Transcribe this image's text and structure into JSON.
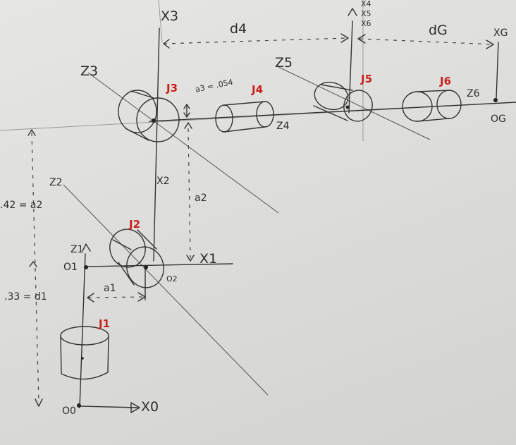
{
  "joints": {
    "j1": "J1",
    "j2": "J2",
    "j3": "J3",
    "j4": "J4",
    "j5": "J5",
    "j6": "J6"
  },
  "axes": {
    "x0": "X0",
    "x1": "X1",
    "x2": "X2",
    "x3": "X3",
    "x4": "X4",
    "x5": "X5",
    "x6": "X6",
    "xg": "XG",
    "z1": "Z1",
    "z2": "Z2",
    "z3": "Z3",
    "z4": "Z4",
    "z5": "Z5",
    "z6": "Z6"
  },
  "origins": {
    "o0": "O0",
    "o1": "O1",
    "o2": "O2",
    "og": "OG"
  },
  "params": {
    "d1_eq": ".33 = d1",
    "a2_eq": ".42 = a2",
    "a3_eq": "a3 = .054",
    "d4": "d4",
    "dg": "dG",
    "a1": "a1",
    "a2": "a2"
  },
  "colors": {
    "ink": "#333333",
    "joint_label": "#c8201c",
    "paper": "#e2e2e0"
  }
}
